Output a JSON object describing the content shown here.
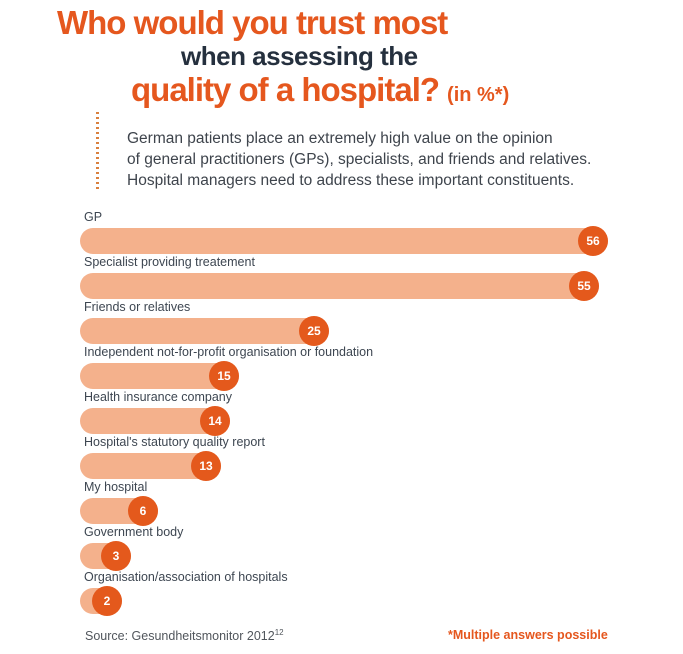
{
  "title": {
    "line1": "Who would you trust most",
    "line2": "when assessing the",
    "line3": "quality of a hospital?",
    "line3_suffix": "(in %*)"
  },
  "intro": {
    "lines": [
      "German patients place an extremely high value on the opinion",
      "of general practitioners (GPs), specialists, and friends and relatives.",
      "Hospital managers need to address these important constituents."
    ]
  },
  "chart_data": {
    "type": "bar",
    "orientation": "horizontal",
    "title": "Who would you trust most when assessing the quality of a hospital? (in %*)",
    "unit": "%",
    "categories": [
      "GP",
      "Specialist providing treatement",
      "Friends or relatives",
      "Independent not-for-profit organisation or foundation",
      "Health insurance company",
      "Hospital's statutory quality report",
      "My hospital",
      "Government body",
      "Organisation/association of hospitals"
    ],
    "values": [
      56,
      55,
      25,
      15,
      14,
      13,
      6,
      3,
      2
    ],
    "xlim": [
      0,
      60
    ],
    "xlabel": "",
    "ylabel": "",
    "grid": false,
    "legend": false,
    "value_labels": "in circular badges at bar ends",
    "bar_color": "#F4B18C",
    "badge_color": "#E4591C"
  },
  "footer": {
    "source_text": "Source: Gesundheitsmonitor 2012",
    "source_superscript": "12",
    "footnote": "*Multiple answers possible"
  },
  "colors": {
    "title_orange": "#E5571E",
    "title_navy": "#25303E",
    "bar_fill": "#F4B18C",
    "bar_badge": "#E4591C",
    "label_text": "#3D4651",
    "intro_text": "#3E444C",
    "source_text": "#51565C",
    "dotted_rule": "#D9803E"
  }
}
